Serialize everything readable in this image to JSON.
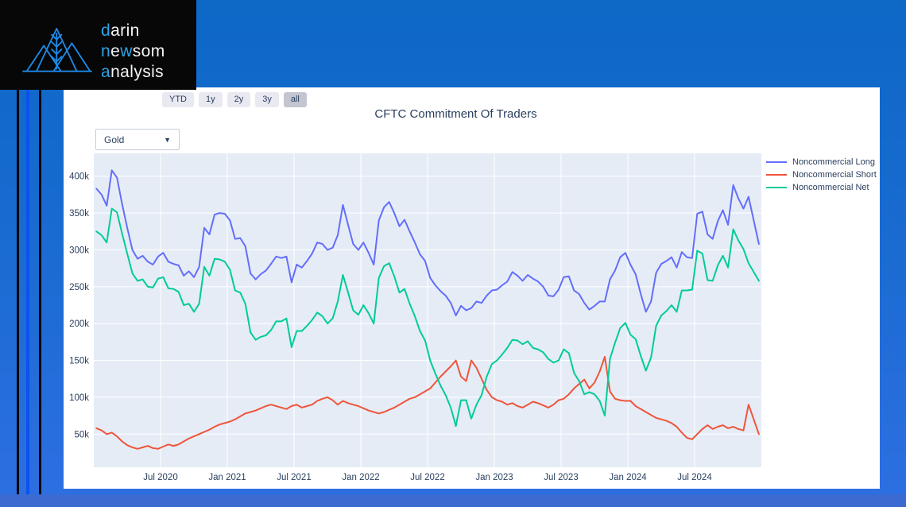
{
  "page": {
    "background_top": "#0d68c6",
    "background_bottom": "#2e6fe2",
    "footer_band_color": "#3b6bd0",
    "stripe_blue_color": "#0a53ee",
    "stripe_black_color": "#050505",
    "card_color": "#ffffff"
  },
  "logo": {
    "word1_blue": "d",
    "word1_rest": "arin",
    "word2_p1": "n",
    "word2_p2": "e",
    "word2_p3": "w",
    "word2_p4": "som",
    "word3_blue": "a",
    "word3_rest": "nalysis",
    "accent_color": "#2ba4e8",
    "mark_color": "#1e8ae8"
  },
  "controls": {
    "range_buttons": [
      {
        "label": "YTD",
        "active": false
      },
      {
        "label": "1y",
        "active": false
      },
      {
        "label": "2y",
        "active": false
      },
      {
        "label": "3y",
        "active": false
      },
      {
        "label": "all",
        "active": true
      }
    ],
    "commodity_dropdown": {
      "value": "Gold",
      "caret": "▼"
    }
  },
  "chart_data": {
    "type": "line",
    "title": "CFTC Commitment Of Traders",
    "plot_background": "#E5ECF6",
    "grid_color": "#ffffff",
    "text_color": "#2a3f5f",
    "legend_position": "right",
    "x_axis": {
      "unit": "decimal_year",
      "start": 2020.02,
      "step": 0.03846,
      "range": [
        2020.0,
        2025.0
      ],
      "ticks": [
        {
          "value": 2020.5,
          "label": "Jul 2020"
        },
        {
          "value": 2021.0,
          "label": "Jan 2021"
        },
        {
          "value": 2021.5,
          "label": "Jul 2021"
        },
        {
          "value": 2022.0,
          "label": "Jan 2022"
        },
        {
          "value": 2022.5,
          "label": "Jul 2022"
        },
        {
          "value": 2023.0,
          "label": "Jan 2023"
        },
        {
          "value": 2023.5,
          "label": "Jul 2023"
        },
        {
          "value": 2024.0,
          "label": "Jan 2024"
        },
        {
          "value": 2024.5,
          "label": "Jul 2024"
        }
      ]
    },
    "y_axis": {
      "unit": "contracts_thousands",
      "range_thousands": [
        5,
        431
      ],
      "ticks_thousands": [
        50,
        100,
        150,
        200,
        250,
        300,
        350,
        400
      ],
      "tick_suffix": "k"
    },
    "series": [
      {
        "name": "Noncommercial Long",
        "color": "#636EFA",
        "values_thousands": [
          383,
          375,
          360,
          408,
          398,
          362,
          330,
          300,
          288,
          292,
          284,
          280,
          291,
          296,
          284,
          281,
          279,
          265,
          271,
          263,
          277,
          330,
          321,
          348,
          350,
          349,
          340,
          315,
          316,
          305,
          268,
          260,
          267,
          272,
          281,
          291,
          289,
          291,
          256,
          280,
          276,
          285,
          295,
          310,
          308,
          300,
          303,
          320,
          361,
          334,
          308,
          300,
          310,
          296,
          280,
          340,
          358,
          365,
          350,
          332,
          341,
          325,
          310,
          294,
          285,
          262,
          252,
          244,
          238,
          228,
          211,
          224,
          218,
          221,
          230,
          228,
          238,
          245,
          246,
          252,
          257,
          270,
          265,
          258,
          266,
          261,
          257,
          250,
          238,
          237,
          246,
          263,
          264,
          245,
          240,
          228,
          219,
          224,
          230,
          230,
          260,
          272,
          290,
          296,
          280,
          267,
          240,
          216,
          230,
          269,
          281,
          285,
          290,
          276,
          297,
          290,
          289,
          349,
          352,
          321,
          315,
          339,
          354,
          334,
          388,
          370,
          356,
          372,
          340,
          308
        ]
      },
      {
        "name": "Noncommercial Short",
        "color": "#EF553B",
        "values_thousands": [
          58,
          55,
          50,
          52,
          47,
          40,
          35,
          32,
          30,
          32,
          34,
          31,
          30,
          33,
          36,
          34,
          36,
          40,
          44,
          47,
          50,
          53,
          56,
          60,
          63,
          65,
          67,
          70,
          74,
          78,
          80,
          82,
          85,
          88,
          90,
          88,
          86,
          84,
          88,
          90,
          86,
          88,
          90,
          95,
          98,
          100,
          96,
          90,
          95,
          92,
          90,
          88,
          85,
          82,
          80,
          78,
          80,
          83,
          86,
          90,
          94,
          98,
          100,
          104,
          108,
          112,
          120,
          128,
          135,
          142,
          150,
          128,
          122,
          150,
          140,
          125,
          110,
          100,
          96,
          94,
          90,
          92,
          88,
          86,
          90,
          94,
          92,
          89,
          86,
          90,
          96,
          98,
          104,
          112,
          118,
          124,
          112,
          120,
          135,
          155,
          108,
          98,
          96,
          95,
          95,
          88,
          84,
          80,
          76,
          72,
          70,
          68,
          65,
          60,
          52,
          45,
          43,
          50,
          57,
          62,
          57,
          60,
          62,
          58,
          60,
          57,
          55,
          90,
          70,
          50
        ]
      },
      {
        "name": "Noncommercial Net",
        "color": "#00CC96",
        "values_thousands": [
          325,
          320,
          310,
          356,
          351,
          322,
          295,
          268,
          258,
          260,
          250,
          249,
          261,
          263,
          248,
          247,
          243,
          225,
          227,
          216,
          227,
          277,
          265,
          288,
          287,
          284,
          273,
          245,
          242,
          227,
          188,
          178,
          182,
          184,
          191,
          203,
          203,
          207,
          168,
          190,
          190,
          197,
          205,
          215,
          210,
          200,
          207,
          230,
          266,
          242,
          218,
          212,
          225,
          214,
          200,
          262,
          278,
          282,
          264,
          242,
          247,
          227,
          210,
          190,
          177,
          150,
          132,
          116,
          103,
          86,
          61,
          96,
          96,
          71,
          90,
          103,
          128,
          145,
          150,
          158,
          167,
          178,
          177,
          172,
          176,
          167,
          165,
          161,
          152,
          147,
          150,
          165,
          160,
          133,
          122,
          104,
          107,
          104,
          95,
          75,
          152,
          174,
          194,
          201,
          185,
          179,
          156,
          136,
          154,
          197,
          211,
          217,
          225,
          216,
          245,
          245,
          246,
          299,
          295,
          259,
          258,
          279,
          292,
          276,
          328,
          313,
          301,
          282,
          270,
          258
        ]
      }
    ]
  }
}
